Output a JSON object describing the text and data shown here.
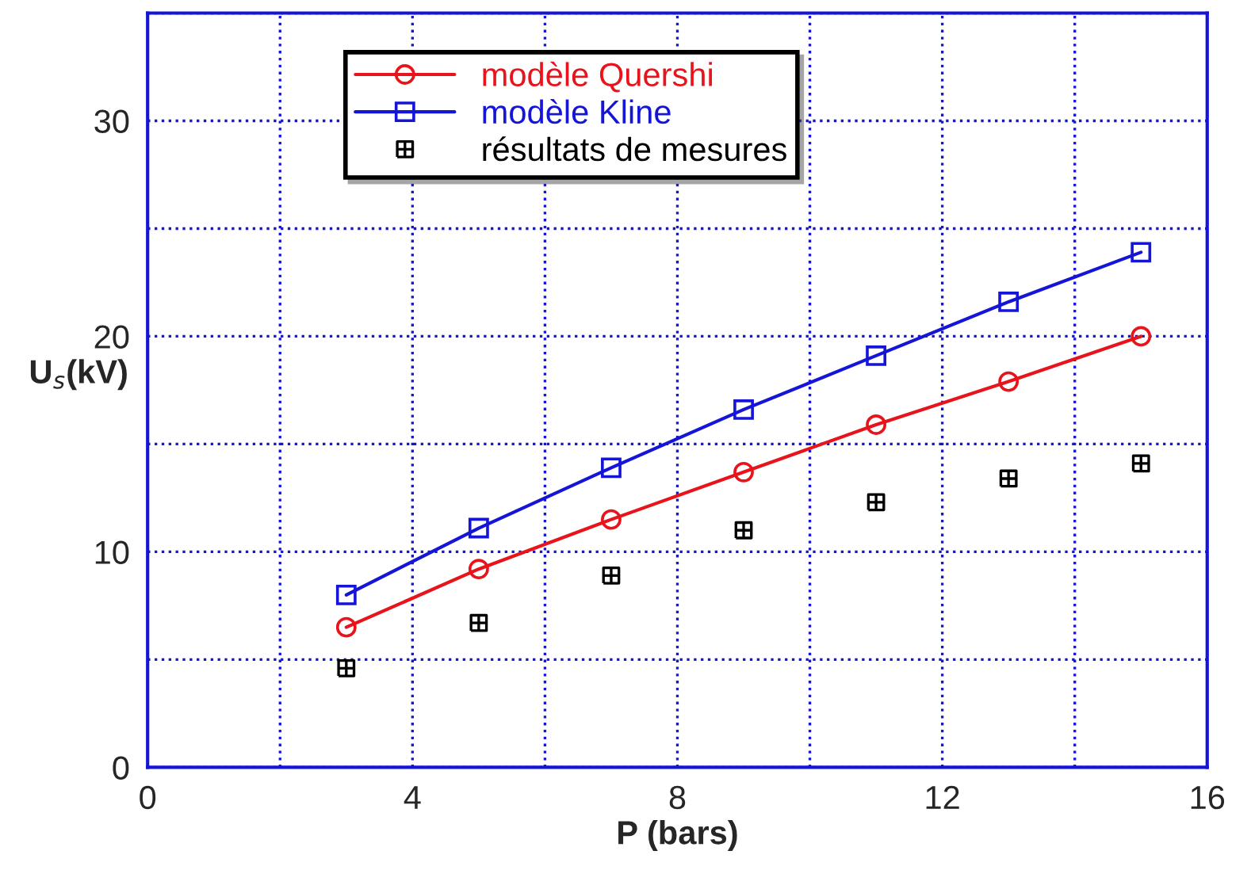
{
  "chart_data": {
    "type": "line",
    "xlabel": "P (bars)",
    "ylabel": "U$_{s}$(kV)",
    "x": [
      3,
      5,
      7,
      9,
      11,
      13,
      15
    ],
    "series": [
      {
        "name": "modèle Quershi",
        "color": "#e8141c",
        "marker": "circle",
        "values": [
          6.5,
          9.2,
          11.5,
          13.7,
          15.9,
          17.9,
          20.0
        ]
      },
      {
        "name": "modèle Kline",
        "color": "#1515d8",
        "marker": "square",
        "values": [
          8.0,
          11.1,
          13.9,
          16.6,
          19.1,
          21.6,
          23.9
        ]
      },
      {
        "name": "résultats de mesures",
        "color": "#000000",
        "type": "scatter",
        "marker": "cross",
        "values": [
          4.6,
          6.7,
          8.9,
          11.0,
          12.3,
          13.4,
          14.1
        ]
      }
    ],
    "xlim": [
      0,
      16
    ],
    "ylim": [
      0,
      35
    ],
    "xticks": [
      0,
      {
        "value": 2,
        "label": null
      },
      4,
      {
        "value": 6,
        "label": null
      },
      8,
      {
        "value": 10,
        "label": null
      },
      12,
      {
        "value": 14,
        "label": null
      },
      16
    ],
    "yticks": [
      0,
      {
        "value": 5,
        "label": null
      },
      10,
      {
        "value": 15,
        "label": null
      },
      20,
      {
        "value": 25,
        "label": null
      },
      30,
      {
        "value": 35,
        "label": null
      }
    ],
    "grid": true,
    "legend": "top"
  }
}
